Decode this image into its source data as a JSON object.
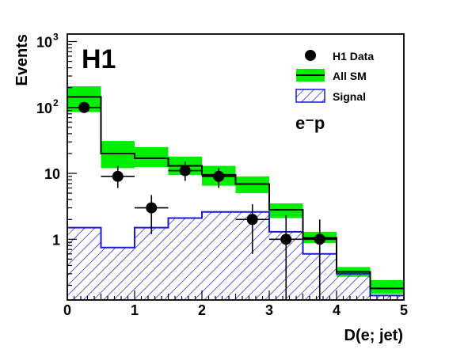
{
  "chart_data": {
    "type": "histogram",
    "experiment_label": "H1",
    "process_label": "e⁻p",
    "xlabel": "D(e; jet)",
    "ylabel": "Events",
    "xlim": [
      0,
      5
    ],
    "ylim": [
      0.12,
      1300
    ],
    "yscale": "log",
    "x_ticks": [
      "0",
      "1",
      "2",
      "3",
      "4",
      "5"
    ],
    "y_ticks": [
      {
        "value": 1,
        "label": "1",
        "exp": ""
      },
      {
        "value": 10,
        "label": "10",
        "exp": ""
      },
      {
        "value": 100,
        "label": "10",
        "exp": "2"
      },
      {
        "value": 1000,
        "label": "10",
        "exp": "3"
      }
    ],
    "bin_edges": [
      0,
      0.5,
      1,
      1.5,
      2,
      2.5,
      3,
      3.5,
      4,
      4.5,
      5
    ],
    "series": [
      {
        "name": "H1 Data",
        "kind": "points",
        "x": [
          0.25,
          0.75,
          1.25,
          1.75,
          2.25,
          2.75,
          3.25,
          3.75
        ],
        "y": [
          100,
          9,
          3,
          11,
          9,
          2,
          1,
          1
        ],
        "y_err_low": [
          10,
          3,
          1.8,
          3.3,
          3,
          1.4,
          0.999,
          0.999
        ],
        "y_err_high": [
          10,
          4,
          1.7,
          4,
          3,
          1.4,
          1.3,
          1.0
        ]
      },
      {
        "name": "All SM",
        "kind": "step",
        "values": [
          145,
          20,
          17,
          13,
          9.5,
          6.9,
          2.8,
          1.05,
          0.32,
          0.18
        ],
        "band_low": [
          85,
          12,
          12.5,
          9.5,
          6.5,
          5,
          2.1,
          0.88,
          0.27,
          0.15
        ],
        "band_high": [
          210,
          31,
          25,
          18,
          13,
          9,
          3.5,
          1.3,
          0.38,
          0.24
        ]
      },
      {
        "name": "Signal",
        "kind": "hatched",
        "values": [
          1.5,
          0.75,
          1.5,
          2.1,
          2.6,
          2.6,
          1.3,
          0.6,
          0.3,
          0.14
        ]
      }
    ],
    "legend_position": "top-right",
    "colors": {
      "band": "#00ee00",
      "sm_line": "#000000",
      "signal": "#1a1ad4",
      "data": "#000000"
    }
  }
}
